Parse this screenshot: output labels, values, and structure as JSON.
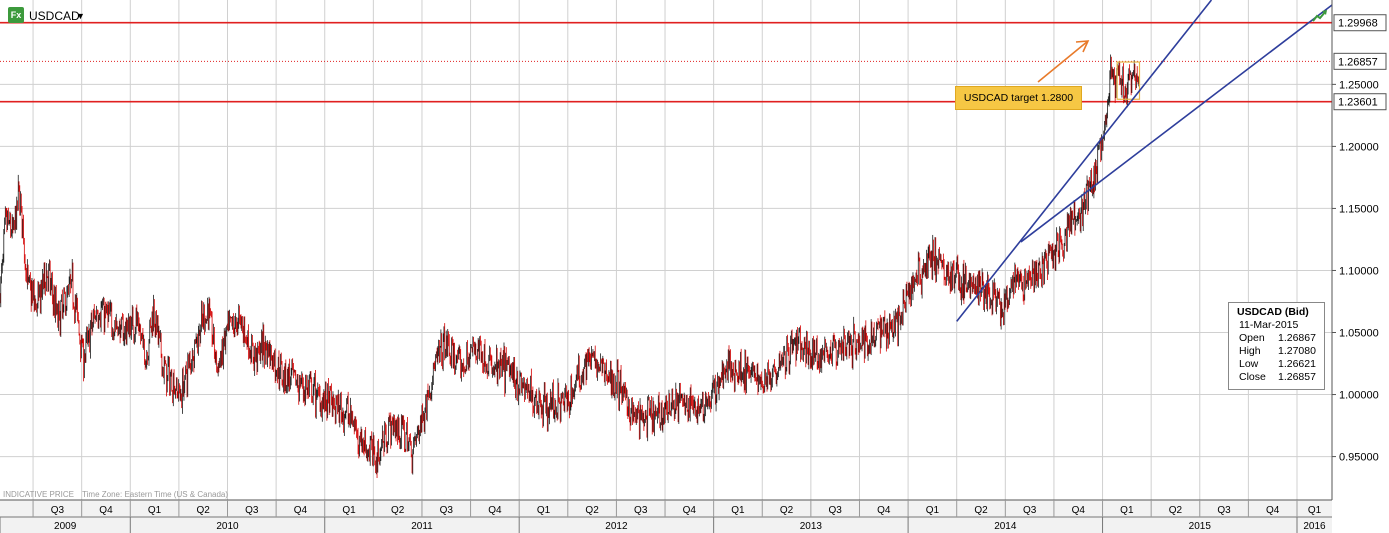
{
  "header": {
    "symbol": "USDCAD",
    "app_icon": "fx-icon",
    "trend_icon": "trend-up-icon"
  },
  "footnote": {
    "indicative": "INDICATIVE PRICE",
    "timezone": "Time Zone: Eastern Time (US & Canada)"
  },
  "annotation": {
    "label": "USDCAD target 1.2800"
  },
  "tooltip": {
    "title": "USDCAD (Bid)",
    "date": "11-Mar-2015",
    "rows": [
      {
        "label": "Open",
        "value": "1.26867"
      },
      {
        "label": "High",
        "value": "1.27080"
      },
      {
        "label": "Low",
        "value": "1.26621"
      },
      {
        "label": "Close",
        "value": "1.26857"
      }
    ]
  },
  "colors": {
    "up": "#1a1a1a",
    "down": "#d40000",
    "hline": "#e02020",
    "trendline": "#2e3e9c",
    "grid": "#d0d0d0",
    "annotation_bg": "#f6c744",
    "arrow": "#e87a2a"
  },
  "chart_data": {
    "type": "candlestick",
    "title": "USDCAD",
    "x_range": [
      2009.33,
      2016.18
    ],
    "ylim": [
      0.915,
      1.318
    ],
    "y_ticks": [
      0.95,
      1.0,
      1.05,
      1.1,
      1.15,
      1.2,
      1.25
    ],
    "y_tick_labels": [
      "0.95000",
      "1.00000",
      "1.05000",
      "1.10000",
      "1.15000",
      "1.20000",
      "1.25000"
    ],
    "horizontal_lines": [
      {
        "value": 1.29968,
        "label": "1.29968",
        "style": "solid"
      },
      {
        "value": 1.26857,
        "label": "1.26857",
        "style": "dotted"
      },
      {
        "value": 1.23601,
        "label": "1.23601",
        "style": "solid"
      }
    ],
    "trendlines": [
      {
        "from": [
          2014.25,
          1.059
        ],
        "to": [
          2015.56,
          1.318
        ]
      },
      {
        "from": [
          2014.58,
          1.123
        ],
        "to": [
          2016.18,
          1.314
        ]
      }
    ],
    "quarters": [
      {
        "label": "Q3",
        "start": 2009.5
      },
      {
        "label": "Q4",
        "start": 2009.75
      },
      {
        "label": "Q1",
        "start": 2010.0
      },
      {
        "label": "Q2",
        "start": 2010.25
      },
      {
        "label": "Q3",
        "start": 2010.5
      },
      {
        "label": "Q4",
        "start": 2010.75
      },
      {
        "label": "Q1",
        "start": 2011.0
      },
      {
        "label": "Q2",
        "start": 2011.25
      },
      {
        "label": "Q3",
        "start": 2011.5
      },
      {
        "label": "Q4",
        "start": 2011.75
      },
      {
        "label": "Q1",
        "start": 2012.0
      },
      {
        "label": "Q2",
        "start": 2012.25
      },
      {
        "label": "Q3",
        "start": 2012.5
      },
      {
        "label": "Q4",
        "start": 2012.75
      },
      {
        "label": "Q1",
        "start": 2013.0
      },
      {
        "label": "Q2",
        "start": 2013.25
      },
      {
        "label": "Q3",
        "start": 2013.5
      },
      {
        "label": "Q4",
        "start": 2013.75
      },
      {
        "label": "Q1",
        "start": 2014.0
      },
      {
        "label": "Q2",
        "start": 2014.25
      },
      {
        "label": "Q3",
        "start": 2014.5
      },
      {
        "label": "Q4",
        "start": 2014.75
      },
      {
        "label": "Q1",
        "start": 2015.0
      },
      {
        "label": "Q2",
        "start": 2015.25
      },
      {
        "label": "Q3",
        "start": 2015.5
      },
      {
        "label": "Q4",
        "start": 2015.75
      },
      {
        "label": "Q1",
        "start": 2016.0
      }
    ],
    "years": [
      {
        "label": "2009",
        "start": 2009.33,
        "end": 2010.0
      },
      {
        "label": "2010",
        "start": 2010.0,
        "end": 2011.0
      },
      {
        "label": "2011",
        "start": 2011.0,
        "end": 2012.0
      },
      {
        "label": "2012",
        "start": 2012.0,
        "end": 2013.0
      },
      {
        "label": "2013",
        "start": 2013.0,
        "end": 2014.0
      },
      {
        "label": "2014",
        "start": 2014.0,
        "end": 2015.0
      },
      {
        "label": "2015",
        "start": 2015.0,
        "end": 2016.0
      },
      {
        "label": "2016",
        "start": 2016.0,
        "end": 2016.18
      }
    ],
    "price_path": [
      [
        2009.33,
        1.08
      ],
      [
        2009.36,
        1.14
      ],
      [
        2009.4,
        1.13
      ],
      [
        2009.43,
        1.165
      ],
      [
        2009.47,
        1.09
      ],
      [
        2009.52,
        1.07
      ],
      [
        2009.57,
        1.1
      ],
      [
        2009.63,
        1.06
      ],
      [
        2009.7,
        1.09
      ],
      [
        2009.76,
        1.03
      ],
      [
        2009.83,
        1.07
      ],
      [
        2009.9,
        1.06
      ],
      [
        2009.96,
        1.05
      ],
      [
        2010.03,
        1.06
      ],
      [
        2010.08,
        1.03
      ],
      [
        2010.12,
        1.07
      ],
      [
        2010.17,
        1.02
      ],
      [
        2010.22,
        1.01
      ],
      [
        2010.26,
        1.0
      ],
      [
        2010.33,
        1.04
      ],
      [
        2010.4,
        1.07
      ],
      [
        2010.45,
        1.02
      ],
      [
        2010.5,
        1.05
      ],
      [
        2010.57,
        1.06
      ],
      [
        2010.63,
        1.03
      ],
      [
        2010.7,
        1.04
      ],
      [
        2010.76,
        1.02
      ],
      [
        2010.85,
        1.01
      ],
      [
        2010.95,
        1.0
      ],
      [
        2011.05,
        0.99
      ],
      [
        2011.12,
        0.985
      ],
      [
        2011.2,
        0.96
      ],
      [
        2011.27,
        0.95
      ],
      [
        2011.33,
        0.975
      ],
      [
        2011.4,
        0.97
      ],
      [
        2011.45,
        0.955
      ],
      [
        2011.5,
        0.98
      ],
      [
        2011.56,
        1.02
      ],
      [
        2011.62,
        1.04
      ],
      [
        2011.7,
        1.02
      ],
      [
        2011.78,
        1.04
      ],
      [
        2011.86,
        1.02
      ],
      [
        2011.95,
        1.02
      ],
      [
        2012.05,
        1.0
      ],
      [
        2012.15,
        0.99
      ],
      [
        2012.25,
        0.995
      ],
      [
        2012.35,
        1.03
      ],
      [
        2012.42,
        1.02
      ],
      [
        2012.5,
        1.01
      ],
      [
        2012.6,
        0.98
      ],
      [
        2012.7,
        0.98
      ],
      [
        2012.8,
        0.995
      ],
      [
        2012.9,
        0.99
      ],
      [
        2012.98,
        0.995
      ],
      [
        2013.06,
        1.02
      ],
      [
        2013.15,
        1.02
      ],
      [
        2013.25,
        1.01
      ],
      [
        2013.35,
        1.03
      ],
      [
        2013.43,
        1.04
      ],
      [
        2013.5,
        1.03
      ],
      [
        2013.6,
        1.035
      ],
      [
        2013.7,
        1.04
      ],
      [
        2013.8,
        1.045
      ],
      [
        2013.88,
        1.055
      ],
      [
        2013.96,
        1.06
      ],
      [
        2014.02,
        1.09
      ],
      [
        2014.07,
        1.1
      ],
      [
        2014.12,
        1.11
      ],
      [
        2014.2,
        1.1
      ],
      [
        2014.28,
        1.09
      ],
      [
        2014.35,
        1.085
      ],
      [
        2014.42,
        1.08
      ],
      [
        2014.49,
        1.065
      ],
      [
        2014.55,
        1.09
      ],
      [
        2014.62,
        1.09
      ],
      [
        2014.7,
        1.105
      ],
      [
        2014.78,
        1.12
      ],
      [
        2014.84,
        1.14
      ],
      [
        2014.9,
        1.15
      ],
      [
        2014.95,
        1.17
      ],
      [
        2015.0,
        1.2
      ],
      [
        2015.04,
        1.255
      ],
      [
        2015.08,
        1.255
      ],
      [
        2015.12,
        1.245
      ],
      [
        2015.16,
        1.255
      ],
      [
        2015.19,
        1.26
      ]
    ]
  }
}
